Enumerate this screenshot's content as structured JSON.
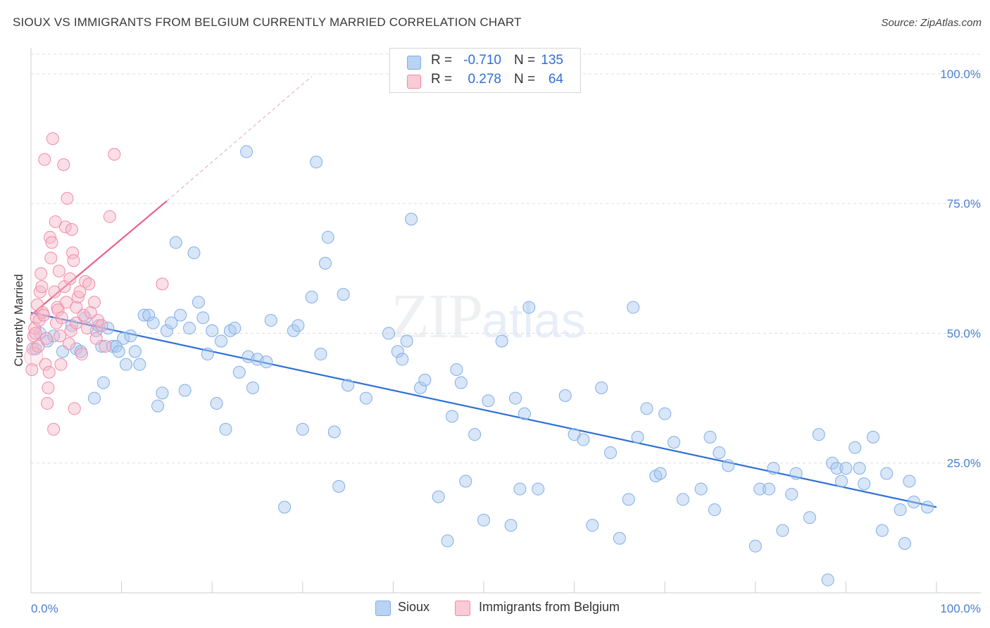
{
  "title": "SIOUX VS IMMIGRANTS FROM BELGIUM CURRENTLY MARRIED CORRELATION CHART",
  "source": "Source: ZipAtlas.com",
  "watermark": {
    "zip": "ZIP",
    "atlas": "atlas"
  },
  "legend": {
    "rows": [
      {
        "r_label": "R =",
        "r_value": "-0.710",
        "n_label": "N =",
        "n_value": "135",
        "color": "#a9c8f0"
      },
      {
        "r_label": "R =",
        "r_value": "0.278",
        "n_label": "N =",
        "n_value": "64",
        "color": "#f6b8c8"
      }
    ]
  },
  "bottom_legend": [
    {
      "label": "Sioux",
      "color": "#a9c8f0"
    },
    {
      "label": "Immigrants from Belgium",
      "color": "#f6b8c8"
    }
  ],
  "chart_data": {
    "type": "scatter",
    "title": "SIOUX VS IMMIGRANTS FROM BELGIUM CURRENTLY MARRIED CORRELATION CHART",
    "xlabel": "",
    "ylabel": "Currently Married",
    "xlim": [
      0,
      100
    ],
    "ylim": [
      0,
      105
    ],
    "x_tick_labels": [
      "0.0%",
      "100.0%"
    ],
    "y_ticks": [
      25,
      50,
      75,
      100
    ],
    "y_tick_labels": [
      "25.0%",
      "50.0%",
      "75.0%",
      "100.0%"
    ],
    "grid": true,
    "series": [
      {
        "name": "Sioux",
        "color": "#7faee8",
        "line_color": "#2f6fd6",
        "trend": {
          "x": [
            0,
            100
          ],
          "y": [
            54.0,
            16.5
          ]
        },
        "points": [
          [
            0.5,
            47
          ],
          [
            1,
            50
          ],
          [
            1.8,
            48.5
          ],
          [
            2.5,
            49.5
          ],
          [
            3.5,
            46.5
          ],
          [
            4.5,
            51.5
          ],
          [
            5,
            47
          ],
          [
            5.5,
            46.5
          ],
          [
            6,
            53
          ],
          [
            7,
            37.5
          ],
          [
            7.2,
            50.5
          ],
          [
            7.5,
            51.5
          ],
          [
            7.8,
            47.5
          ],
          [
            8,
            40.5
          ],
          [
            8.5,
            51
          ],
          [
            9,
            47.5
          ],
          [
            9.4,
            47.5
          ],
          [
            9.7,
            46.5
          ],
          [
            10.2,
            49
          ],
          [
            10.5,
            44
          ],
          [
            11,
            49.5
          ],
          [
            11.5,
            46.5
          ],
          [
            12,
            44
          ],
          [
            12.5,
            53.5
          ],
          [
            13,
            53.5
          ],
          [
            13.5,
            52
          ],
          [
            14,
            36
          ],
          [
            14.5,
            38.5
          ],
          [
            15,
            50.5
          ],
          [
            15.5,
            52
          ],
          [
            16,
            67.5
          ],
          [
            16.5,
            53.5
          ],
          [
            17,
            39
          ],
          [
            17.5,
            51
          ],
          [
            18,
            65.5
          ],
          [
            18.5,
            56
          ],
          [
            19,
            53
          ],
          [
            19.5,
            46
          ],
          [
            20,
            50.5
          ],
          [
            20.5,
            36.5
          ],
          [
            21,
            48.5
          ],
          [
            21.5,
            31.5
          ],
          [
            22,
            50.5
          ],
          [
            22.5,
            51
          ],
          [
            23,
            42.5
          ],
          [
            23.8,
            85
          ],
          [
            24,
            45.5
          ],
          [
            24.5,
            39.5
          ],
          [
            25,
            45
          ],
          [
            26,
            44.5
          ],
          [
            26.5,
            52.5
          ],
          [
            28,
            16.5
          ],
          [
            29,
            50.5
          ],
          [
            29.5,
            51.5
          ],
          [
            30,
            31.5
          ],
          [
            31,
            57
          ],
          [
            31.5,
            83
          ],
          [
            32,
            46
          ],
          [
            32.5,
            63.5
          ],
          [
            32.8,
            68.5
          ],
          [
            33.5,
            31
          ],
          [
            34,
            20.5
          ],
          [
            34.5,
            57.5
          ],
          [
            35,
            40
          ],
          [
            37,
            37.5
          ],
          [
            39.5,
            50
          ],
          [
            40.5,
            46.5
          ],
          [
            41,
            45
          ],
          [
            41.5,
            48.5
          ],
          [
            42,
            72
          ],
          [
            43,
            39.5
          ],
          [
            43.5,
            41
          ],
          [
            45,
            18.5
          ],
          [
            46,
            10
          ],
          [
            46.5,
            34
          ],
          [
            47,
            43
          ],
          [
            47.5,
            40.5
          ],
          [
            48,
            21.5
          ],
          [
            49,
            30.5
          ],
          [
            50,
            14
          ],
          [
            50.5,
            37
          ],
          [
            52,
            48.5
          ],
          [
            53,
            13
          ],
          [
            53.5,
            37.5
          ],
          [
            54,
            20
          ],
          [
            54.5,
            34.5
          ],
          [
            55,
            55
          ],
          [
            56,
            20
          ],
          [
            59,
            38
          ],
          [
            60,
            30.5
          ],
          [
            61,
            29.5
          ],
          [
            62,
            13
          ],
          [
            63,
            39.5
          ],
          [
            64,
            27
          ],
          [
            65,
            10.5
          ],
          [
            66,
            18
          ],
          [
            66.5,
            55
          ],
          [
            67,
            30
          ],
          [
            68,
            35.5
          ],
          [
            69,
            22.5
          ],
          [
            69.5,
            23
          ],
          [
            70,
            34.5
          ],
          [
            71,
            29
          ],
          [
            72,
            18
          ],
          [
            74,
            20
          ],
          [
            75,
            30
          ],
          [
            75.5,
            16
          ],
          [
            76,
            27
          ],
          [
            77,
            24.5
          ],
          [
            80,
            9
          ],
          [
            80.5,
            20
          ],
          [
            81.5,
            20
          ],
          [
            82,
            24
          ],
          [
            83,
            12
          ],
          [
            84,
            19
          ],
          [
            84.5,
            23
          ],
          [
            86,
            14.5
          ],
          [
            87,
            30.5
          ],
          [
            88,
            2.5
          ],
          [
            88.5,
            25
          ],
          [
            89,
            24
          ],
          [
            89.5,
            21.5
          ],
          [
            90,
            24
          ],
          [
            91,
            28
          ],
          [
            91.5,
            24
          ],
          [
            92,
            21
          ],
          [
            93,
            30
          ],
          [
            94,
            12
          ],
          [
            94.5,
            23
          ],
          [
            96,
            16
          ],
          [
            96.5,
            9.5
          ],
          [
            97,
            21.5
          ],
          [
            97.5,
            17.5
          ],
          [
            99,
            16.5
          ]
        ]
      },
      {
        "name": "Immigrants from Belgium",
        "color": "#f08aa8",
        "line_color": "#e8608a",
        "trend": {
          "x": [
            0,
            15
          ],
          "y": [
            53.5,
            75.5
          ]
        },
        "trend_ext": {
          "x": [
            15,
            31
          ],
          "y": [
            75.5,
            99.5
          ]
        },
        "points": [
          [
            0.1,
            43
          ],
          [
            0.2,
            47
          ],
          [
            0.3,
            49.5
          ],
          [
            0.4,
            51
          ],
          [
            0.5,
            50
          ],
          [
            0.6,
            53
          ],
          [
            0.7,
            55.5
          ],
          [
            0.8,
            47.5
          ],
          [
            0.9,
            52.5
          ],
          [
            1,
            58
          ],
          [
            1.1,
            61.5
          ],
          [
            1.2,
            59
          ],
          [
            1.3,
            54
          ],
          [
            1.4,
            53.5
          ],
          [
            1.5,
            83.5
          ],
          [
            1.6,
            44
          ],
          [
            1.7,
            49
          ],
          [
            1.8,
            36.5
          ],
          [
            1.9,
            39.5
          ],
          [
            2,
            42.5
          ],
          [
            2.1,
            68.5
          ],
          [
            2.2,
            64.5
          ],
          [
            2.3,
            67.5
          ],
          [
            2.4,
            87.5
          ],
          [
            2.5,
            31.5
          ],
          [
            2.6,
            58
          ],
          [
            2.7,
            71.5
          ],
          [
            2.8,
            52
          ],
          [
            2.9,
            55
          ],
          [
            3,
            54.5
          ],
          [
            3.1,
            62
          ],
          [
            3.2,
            49.5
          ],
          [
            3.3,
            44
          ],
          [
            3.4,
            53
          ],
          [
            3.6,
            82.5
          ],
          [
            3.7,
            59
          ],
          [
            3.8,
            70.5
          ],
          [
            3.9,
            56
          ],
          [
            4,
            76
          ],
          [
            4.2,
            48
          ],
          [
            4.3,
            60.5
          ],
          [
            4.4,
            50.5
          ],
          [
            4.5,
            70
          ],
          [
            4.6,
            65.5
          ],
          [
            4.7,
            64
          ],
          [
            4.8,
            35.5
          ],
          [
            5,
            52
          ],
          [
            5,
            55
          ],
          [
            5.2,
            57
          ],
          [
            5.4,
            58
          ],
          [
            5.6,
            46
          ],
          [
            5.8,
            53.5
          ],
          [
            6,
            60
          ],
          [
            6.2,
            51
          ],
          [
            6.4,
            59.5
          ],
          [
            6.6,
            54
          ],
          [
            7,
            56
          ],
          [
            7.2,
            49
          ],
          [
            7.4,
            52.5
          ],
          [
            7.8,
            51.5
          ],
          [
            8.2,
            47.5
          ],
          [
            8.7,
            72.5
          ],
          [
            9.2,
            84.5
          ],
          [
            14.5,
            59.5
          ]
        ]
      }
    ]
  }
}
